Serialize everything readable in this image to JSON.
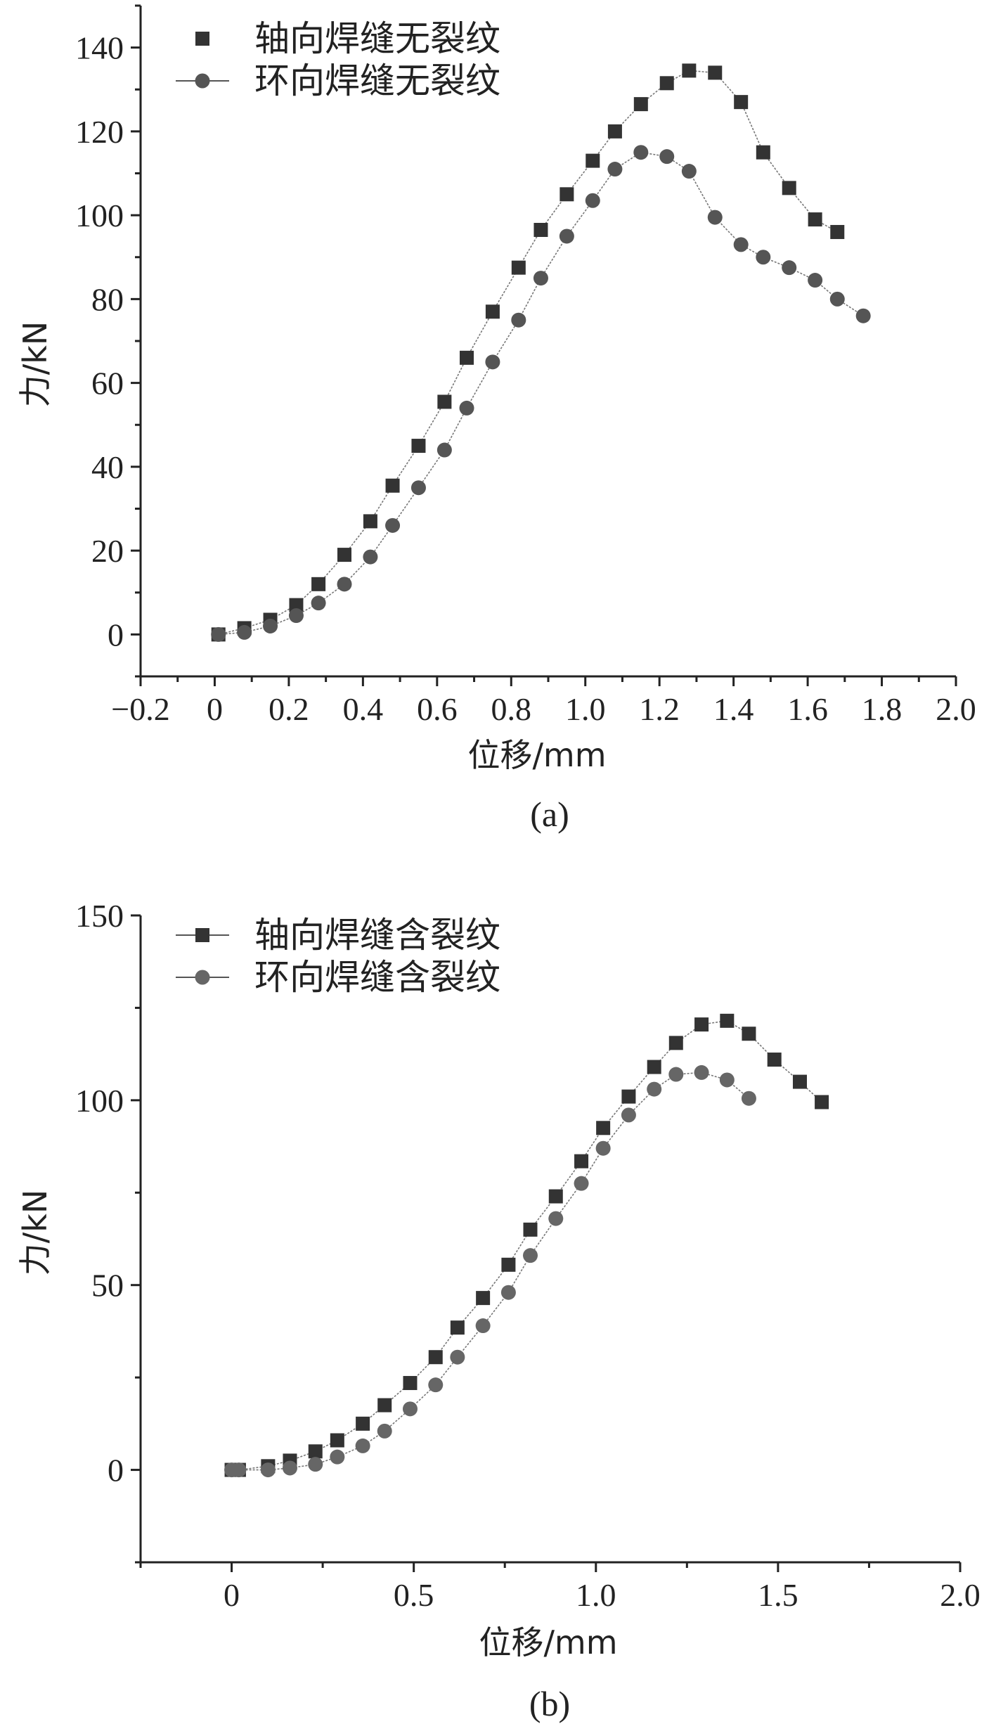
{
  "chart_data": [
    {
      "id": "a",
      "type": "line",
      "caption": "(a)",
      "xlabel": "位移/mm",
      "ylabel": "力/kN",
      "xlim": [
        -0.2,
        2.0
      ],
      "ylim": [
        -10,
        150
      ],
      "xticks": [
        -0.2,
        0,
        0.2,
        0.4,
        0.6,
        0.8,
        1.0,
        1.2,
        1.4,
        1.6,
        1.8,
        2.0
      ],
      "xtick_labels": [
        "−0.2",
        "0",
        "0.2",
        "0.4",
        "0.6",
        "0.8",
        "1.0",
        "1.2",
        "1.4",
        "1.6",
        "1.8",
        "2.0"
      ],
      "yticks": [
        0,
        20,
        40,
        60,
        80,
        100,
        120,
        140
      ],
      "ytick_labels": [
        "0",
        "20",
        "40",
        "60",
        "80",
        "100",
        "120",
        "140"
      ],
      "legend_position": "top-left",
      "series": [
        {
          "name": "轴向焊缝无裂纹",
          "marker": "square",
          "color": "#333333",
          "x": [
            0.01,
            0.08,
            0.15,
            0.22,
            0.28,
            0.35,
            0.42,
            0.48,
            0.55,
            0.62,
            0.68,
            0.75,
            0.82,
            0.88,
            0.95,
            1.02,
            1.08,
            1.15,
            1.22,
            1.28,
            1.35,
            1.42,
            1.48,
            1.55,
            1.62,
            1.68
          ],
          "y": [
            0,
            1.5,
            3.5,
            7,
            12,
            19,
            27,
            35.5,
            45,
            55.5,
            66,
            77,
            87.5,
            96.5,
            105,
            113,
            120,
            126.5,
            131.5,
            134.5,
            134,
            127,
            115,
            106.5,
            99,
            96
          ]
        },
        {
          "name": "环向焊缝无裂纹",
          "marker": "circle",
          "color": "#555555",
          "x": [
            0.01,
            0.08,
            0.15,
            0.22,
            0.28,
            0.35,
            0.42,
            0.48,
            0.55,
            0.62,
            0.68,
            0.75,
            0.82,
            0.88,
            0.95,
            1.02,
            1.08,
            1.15,
            1.22,
            1.28,
            1.35,
            1.42,
            1.48,
            1.55,
            1.62,
            1.68,
            1.75
          ],
          "y": [
            0,
            0.5,
            2,
            4.5,
            7.5,
            12,
            18.5,
            26,
            35,
            44,
            54,
            65,
            75,
            85,
            95,
            103.5,
            111,
            115,
            114,
            110.5,
            99.5,
            93,
            90,
            87.5,
            84.5,
            80,
            76
          ]
        }
      ]
    },
    {
      "id": "b",
      "type": "line",
      "caption": "(b)",
      "xlabel": "位移/mm",
      "ylabel": "力/kN",
      "xlim": [
        -0.25,
        2.0
      ],
      "ylim": [
        -25,
        150
      ],
      "xticks": [
        0,
        0.5,
        1.0,
        1.5,
        2.0
      ],
      "xtick_labels": [
        "0",
        "0.5",
        "1.0",
        "1.5",
        "2.0"
      ],
      "yticks": [
        0,
        50,
        100,
        150
      ],
      "ytick_labels": [
        "0",
        "50",
        "100",
        "150"
      ],
      "legend_position": "top-left",
      "series": [
        {
          "name": "轴向焊缝含裂纹",
          "marker": "square",
          "color": "#333333",
          "x": [
            0.0,
            0.02,
            0.1,
            0.16,
            0.23,
            0.29,
            0.36,
            0.42,
            0.49,
            0.56,
            0.62,
            0.69,
            0.76,
            0.82,
            0.89,
            0.96,
            1.02,
            1.09,
            1.16,
            1.22,
            1.29,
            1.36,
            1.42,
            1.49,
            1.56,
            1.62
          ],
          "y": [
            0,
            0,
            1,
            2.5,
            5,
            8,
            12.5,
            17.5,
            23.5,
            30.5,
            38.5,
            46.5,
            55.5,
            65,
            74,
            83.5,
            92.5,
            101,
            109,
            115.5,
            120.5,
            121.5,
            118,
            111,
            105,
            99.5
          ]
        },
        {
          "name": "环向焊缝含裂纹",
          "marker": "circle",
          "color": "#666666",
          "x": [
            0.0,
            0.02,
            0.1,
            0.16,
            0.23,
            0.29,
            0.36,
            0.42,
            0.49,
            0.56,
            0.62,
            0.69,
            0.76,
            0.82,
            0.89,
            0.96,
            1.02,
            1.09,
            1.16,
            1.22,
            1.29,
            1.36,
            1.42
          ],
          "y": [
            0,
            0,
            0,
            0.5,
            1.5,
            3.5,
            6.5,
            10.5,
            16.5,
            23,
            30.5,
            39,
            48,
            58,
            68,
            77.5,
            87,
            96,
            103,
            107,
            107.5,
            105.5,
            100.5
          ]
        }
      ]
    }
  ]
}
